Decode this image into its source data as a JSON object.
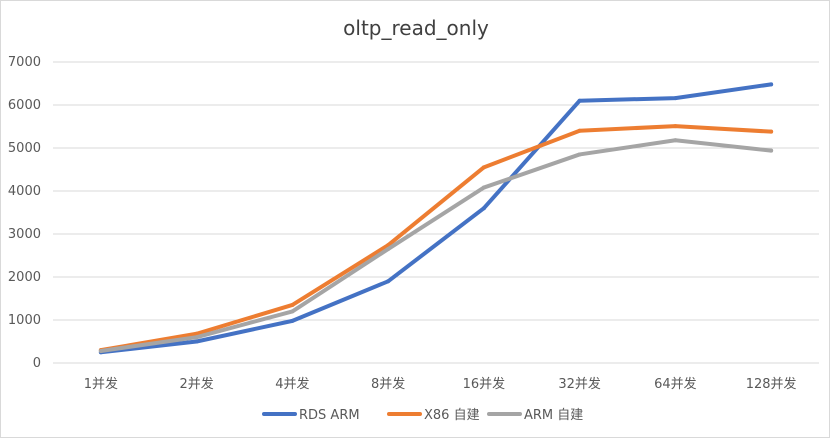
{
  "chart_data": {
    "type": "line",
    "title": "oltp_read_only",
    "xlabel": "",
    "ylabel": "",
    "categories": [
      "1并发",
      "2并发",
      "4并发",
      "8并发",
      "16并发",
      "32并发",
      "64并发",
      "128并发"
    ],
    "ylim": [
      0,
      7000
    ],
    "yticks": [
      0,
      1000,
      2000,
      3000,
      4000,
      5000,
      6000,
      7000
    ],
    "grid": true,
    "legend_position": "bottom",
    "series": [
      {
        "name": "RDS ARM",
        "color": "#4472C4",
        "values": [
          250,
          500,
          980,
          1900,
          3600,
          6100,
          6160,
          6480
        ]
      },
      {
        "name": "X86 自建",
        "color": "#ED7D31",
        "values": [
          300,
          680,
          1350,
          2740,
          4550,
          5400,
          5510,
          5380
        ]
      },
      {
        "name": "ARM 自建",
        "color": "#A5A5A5",
        "values": [
          280,
          600,
          1200,
          2650,
          4080,
          4850,
          5180,
          4940
        ]
      }
    ]
  }
}
